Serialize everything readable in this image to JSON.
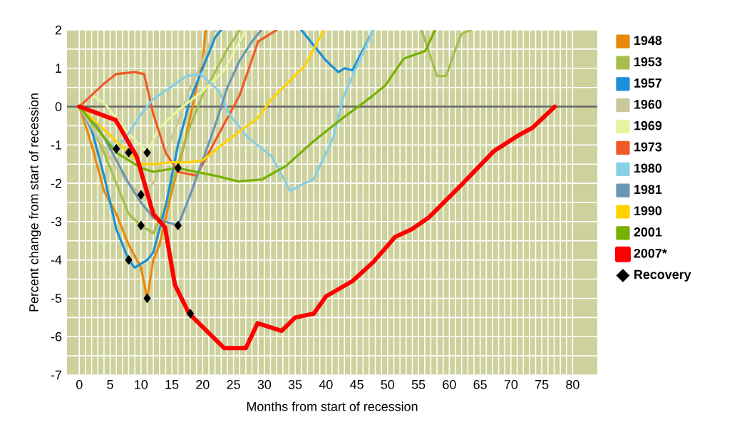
{
  "chart_data": {
    "type": "line",
    "xlabel": "Months from start of recession",
    "ylabel": "Percent change from start of recession",
    "xlim": [
      -2,
      84
    ],
    "ylim": [
      -7,
      2
    ],
    "xticks": [
      0,
      5,
      10,
      15,
      20,
      25,
      30,
      35,
      40,
      45,
      50,
      55,
      60,
      65,
      70,
      75,
      80
    ],
    "yticks": [
      -7,
      -6,
      -5,
      -4,
      -3,
      -2,
      -1,
      0,
      1,
      2
    ],
    "grid": true,
    "legend": "right",
    "marker": "none",
    "ref_lines": [
      {
        "axis": "y",
        "value": 0,
        "color": "#666666"
      }
    ],
    "series": [
      {
        "name": "1948",
        "color": "#e8890c",
        "x": [
          0,
          2,
          4,
          6,
          8,
          10,
          11,
          12,
          13,
          15,
          17,
          19,
          20,
          20.5
        ],
        "values": [
          0,
          -1,
          -2.2,
          -2.8,
          -3.6,
          -4.2,
          -5.0,
          -4.0,
          -3.6,
          -2.2,
          -1.0,
          0.5,
          1.2,
          2
        ]
      },
      {
        "name": "1953",
        "color": "#a5be4c",
        "x": [
          0,
          2,
          4,
          6,
          8,
          10,
          12,
          14,
          16,
          18,
          20,
          22,
          24,
          26,
          40,
          55.5,
          58,
          59.5,
          61,
          62,
          63.5
        ],
        "values": [
          0,
          -0.5,
          -1.2,
          -2.0,
          -2.8,
          -3.1,
          -3.3,
          -2.6,
          -1.5,
          -0.5,
          0.3,
          0.9,
          1.5,
          2,
          null,
          2,
          0.8,
          0.8,
          1.5,
          1.9,
          2
        ]
      },
      {
        "name": "1957",
        "color": "#1a90d8",
        "x": [
          0,
          2,
          4,
          6,
          8,
          9,
          11,
          12,
          14,
          16,
          18,
          20,
          22,
          23,
          30,
          36,
          40,
          42,
          43,
          44.3,
          47.7
        ],
        "values": [
          0,
          -0.6,
          -1.8,
          -3.2,
          -4.0,
          -4.2,
          -4.0,
          -3.8,
          -2.6,
          -1.0,
          0.2,
          1.0,
          1.8,
          2,
          null,
          2,
          1.2,
          0.9,
          1.0,
          0.95,
          2
        ]
      },
      {
        "name": "1960",
        "color": "#c8c89a",
        "x": [
          0,
          3,
          6,
          8,
          10,
          12,
          14,
          16,
          18,
          20,
          22
        ],
        "values": [
          0,
          -0.8,
          -1.6,
          -2.0,
          -2.3,
          -2.0,
          -1.2,
          -0.4,
          0.5,
          1.2,
          2
        ]
      },
      {
        "name": "1969",
        "color": "#e6f5a0",
        "x": [
          0,
          2,
          4,
          6,
          8,
          11,
          13,
          16,
          20,
          23.5,
          27
        ],
        "values": [
          0,
          0.3,
          0.1,
          -0.3,
          -0.7,
          -1.2,
          -0.55,
          -0.1,
          0.4,
          0.95,
          2
        ]
      },
      {
        "name": "1973",
        "color": "#f05a28",
        "x": [
          0,
          2,
          4,
          6,
          9,
          10.5,
          12,
          14,
          16,
          19,
          22,
          26,
          29,
          32
        ],
        "values": [
          0,
          0.3,
          0.6,
          0.85,
          0.9,
          0.85,
          -0.2,
          -1.2,
          -1.7,
          -1.8,
          -0.9,
          0.3,
          1.7,
          2
        ]
      },
      {
        "name": "1980",
        "color": "#87cfe6",
        "x": [
          0,
          2,
          4,
          6,
          8,
          10,
          12,
          14.3,
          17.4,
          19.7,
          22.7,
          24.3,
          27.3,
          31.2,
          34.2,
          36.5,
          38,
          41.2,
          42.7,
          44.7,
          47.7
        ],
        "values": [
          0,
          -0.4,
          -0.8,
          -1.1,
          -0.7,
          -0.2,
          0.2,
          0.45,
          0.8,
          0.85,
          0.4,
          -0.2,
          -0.8,
          -1.3,
          -2.2,
          -2.0,
          -1.9,
          -0.8,
          0.2,
          0.95,
          2
        ]
      },
      {
        "name": "1981",
        "color": "#6a96b5",
        "x": [
          0,
          2,
          4,
          6,
          8,
          10,
          12,
          14,
          16,
          18,
          20,
          22,
          24,
          26,
          28,
          29.5
        ],
        "values": [
          0,
          -0.3,
          -0.8,
          -1.4,
          -2.0,
          -2.5,
          -2.9,
          -3.0,
          -3.1,
          -2.3,
          -1.4,
          -0.5,
          0.5,
          1.2,
          1.7,
          2
        ]
      },
      {
        "name": "1990",
        "color": "#ffd200",
        "x": [
          0,
          2,
          4,
          6,
          8,
          10,
          12,
          15,
          18,
          20,
          24.3,
          28.9,
          31.2,
          36.5,
          39.7
        ],
        "values": [
          0,
          -0.3,
          -0.6,
          -0.9,
          -1.2,
          -1.5,
          -1.5,
          -1.45,
          -1.45,
          -1.4,
          -0.85,
          -0.3,
          0.2,
          1.05,
          2
        ]
      },
      {
        "name": "2001",
        "color": "#78b000",
        "x": [
          0,
          2,
          4,
          6,
          8,
          10,
          12,
          15.8,
          22,
          25.8,
          29.6,
          33.5,
          38,
          42.7,
          47.3,
          49.6,
          52.6,
          56.1,
          57.7
        ],
        "values": [
          0,
          -0.4,
          -0.8,
          -1.2,
          -1.4,
          -1.6,
          -1.7,
          -1.6,
          -1.8,
          -1.95,
          -1.9,
          -1.55,
          -0.9,
          -0.3,
          0.25,
          0.55,
          1.25,
          1.45,
          2
        ]
      },
      {
        "name": "2007*",
        "color": "#ff0000",
        "x": [
          0,
          5.9,
          9.3,
          12,
          13.9,
          15.5,
          17.8,
          23.5,
          27,
          28.9,
          32.8,
          35,
          38,
          40,
          44.3,
          47.7,
          51.2,
          53.9,
          56.6,
          61.9,
          67.3,
          71.2,
          73.5,
          77.1
        ],
        "values": [
          0,
          -0.35,
          -1.3,
          -2.8,
          -3.15,
          -4.65,
          -5.4,
          -6.3,
          -6.3,
          -5.65,
          -5.85,
          -5.5,
          -5.4,
          -4.95,
          -4.55,
          -4.05,
          -3.4,
          -3.2,
          -2.9,
          -2.05,
          -1.15,
          -0.75,
          -0.55,
          0
        ]
      },
      {
        "name": "Recovery",
        "type": "scatter",
        "marker": "diamond",
        "color": "#000000",
        "x": [
          6,
          8,
          11,
          16,
          10,
          10,
          16,
          8,
          11,
          18
        ],
        "values": [
          -1.1,
          -1.2,
          -1.2,
          -1.6,
          -2.3,
          -3.1,
          -3.1,
          -4.0,
          -5.0,
          -5.4
        ]
      }
    ]
  }
}
